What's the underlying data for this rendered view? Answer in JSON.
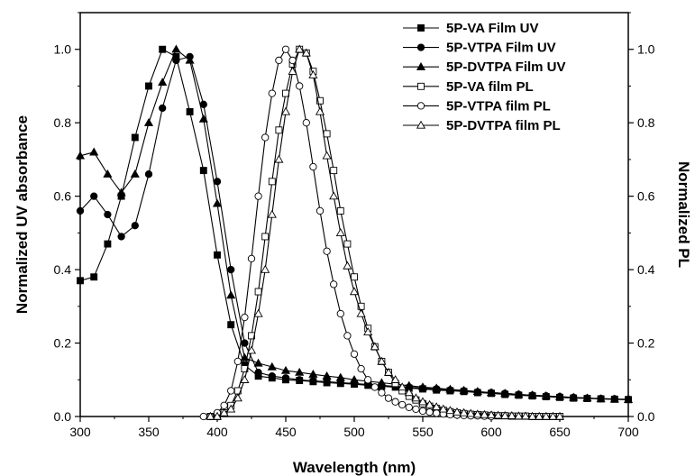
{
  "chart_data": {
    "type": "line",
    "xlabel": "Wavelength (nm)",
    "ylabel_left": "Normalized UV absorbance",
    "ylabel_right": "Normalized PL",
    "xlim": [
      300,
      700
    ],
    "ylim_left": [
      0,
      1.1
    ],
    "ylim_right": [
      0,
      1.1
    ],
    "x_ticks": [
      "300",
      "350",
      "400",
      "450",
      "500",
      "550",
      "600",
      "650",
      "700"
    ],
    "y_ticks_left": [
      "0.0",
      "0.2",
      "0.4",
      "0.6",
      "0.8",
      "1.0"
    ],
    "y_ticks_right": [
      "0.0",
      "0.2",
      "0.4",
      "0.6",
      "0.8",
      "1.0"
    ],
    "legend_position": "top-right",
    "grid": false,
    "series": [
      {
        "name": "5P-VA Film UV",
        "marker": "square",
        "fill": "filled",
        "x": [
          300,
          310,
          320,
          330,
          340,
          350,
          360,
          370,
          380,
          390,
          400,
          410,
          420,
          430,
          440,
          450,
          460,
          470,
          480,
          490,
          500,
          510,
          520,
          530,
          540,
          550,
          560,
          570,
          580,
          590,
          600,
          610,
          620,
          630,
          640,
          650,
          660,
          670,
          680,
          690,
          700
        ],
        "y": [
          0.37,
          0.38,
          0.47,
          0.6,
          0.76,
          0.9,
          1.0,
          0.98,
          0.83,
          0.67,
          0.44,
          0.25,
          0.14,
          0.11,
          0.105,
          0.1,
          0.098,
          0.095,
          0.092,
          0.09,
          0.088,
          0.085,
          0.082,
          0.08,
          0.077,
          0.075,
          0.072,
          0.07,
          0.068,
          0.065,
          0.063,
          0.06,
          0.058,
          0.056,
          0.054,
          0.052,
          0.05,
          0.049,
          0.048,
          0.047,
          0.046
        ]
      },
      {
        "name": "5P-VTPA Film UV",
        "marker": "circle",
        "fill": "filled",
        "x": [
          300,
          310,
          320,
          330,
          340,
          350,
          360,
          370,
          380,
          390,
          400,
          410,
          420,
          430,
          440,
          450,
          460,
          470,
          480,
          490,
          500,
          510,
          520,
          530,
          540,
          550,
          560,
          570,
          580,
          590,
          600,
          610,
          620,
          630,
          640,
          650,
          660,
          670,
          680,
          690,
          700
        ],
        "y": [
          0.56,
          0.6,
          0.55,
          0.49,
          0.52,
          0.66,
          0.84,
          0.97,
          0.98,
          0.85,
          0.64,
          0.4,
          0.2,
          0.12,
          0.11,
          0.105,
          0.1,
          0.097,
          0.095,
          0.092,
          0.09,
          0.087,
          0.085,
          0.082,
          0.08,
          0.077,
          0.075,
          0.072,
          0.07,
          0.067,
          0.065,
          0.063,
          0.06,
          0.058,
          0.056,
          0.054,
          0.052,
          0.05,
          0.049,
          0.048,
          0.047
        ]
      },
      {
        "name": "5P-DVTPA Film UV",
        "marker": "triangle",
        "fill": "filled",
        "x": [
          300,
          310,
          320,
          330,
          340,
          350,
          360,
          370,
          380,
          390,
          400,
          410,
          420,
          430,
          440,
          450,
          460,
          470,
          480,
          490,
          500,
          510,
          520,
          530,
          540,
          550,
          560,
          570,
          580,
          590,
          600,
          610,
          620,
          630,
          640,
          650,
          660,
          670,
          680,
          690,
          700
        ],
        "y": [
          0.71,
          0.72,
          0.66,
          0.61,
          0.66,
          0.8,
          0.91,
          1.0,
          0.97,
          0.81,
          0.58,
          0.33,
          0.16,
          0.145,
          0.135,
          0.125,
          0.12,
          0.115,
          0.11,
          0.106,
          0.1,
          0.096,
          0.092,
          0.088,
          0.084,
          0.08,
          0.077,
          0.074,
          0.071,
          0.068,
          0.065,
          0.063,
          0.06,
          0.058,
          0.056,
          0.054,
          0.052,
          0.05,
          0.048,
          0.047,
          0.046
        ]
      },
      {
        "name": "5P-VA film PL",
        "marker": "square",
        "fill": "open",
        "x": [
          395,
          400,
          405,
          410,
          415,
          420,
          425,
          430,
          435,
          440,
          445,
          450,
          455,
          460,
          465,
          470,
          475,
          480,
          485,
          490,
          495,
          500,
          505,
          510,
          515,
          520,
          525,
          530,
          535,
          540,
          545,
          550,
          555,
          560,
          565,
          570,
          575,
          580,
          585,
          590,
          595,
          600,
          605,
          610,
          615,
          620,
          625,
          630,
          635,
          640,
          645,
          650
        ],
        "y": [
          0.0,
          0.0,
          0.01,
          0.03,
          0.07,
          0.13,
          0.22,
          0.34,
          0.49,
          0.64,
          0.78,
          0.88,
          0.96,
          1.0,
          0.99,
          0.94,
          0.86,
          0.77,
          0.67,
          0.56,
          0.47,
          0.38,
          0.3,
          0.24,
          0.19,
          0.15,
          0.12,
          0.09,
          0.07,
          0.055,
          0.045,
          0.035,
          0.028,
          0.022,
          0.017,
          0.013,
          0.01,
          0.008,
          0.006,
          0.005,
          0.004,
          0.003,
          0.002,
          0.002,
          0.001,
          0.001,
          0.001,
          0.0,
          0.0,
          0.0,
          0.0,
          0.0
        ]
      },
      {
        "name": "5P-VTPA film PL",
        "marker": "circle",
        "fill": "open",
        "x": [
          390,
          395,
          400,
          405,
          410,
          415,
          420,
          425,
          430,
          435,
          440,
          445,
          450,
          455,
          460,
          465,
          470,
          475,
          480,
          485,
          490,
          495,
          500,
          505,
          510,
          515,
          520,
          525,
          530,
          535,
          540,
          545,
          550,
          555,
          560,
          565,
          570,
          575,
          580,
          585,
          590,
          595,
          600
        ],
        "y": [
          0.0,
          0.0,
          0.01,
          0.03,
          0.07,
          0.15,
          0.27,
          0.43,
          0.6,
          0.76,
          0.88,
          0.97,
          1.0,
          0.97,
          0.9,
          0.8,
          0.68,
          0.56,
          0.45,
          0.36,
          0.28,
          0.22,
          0.17,
          0.13,
          0.1,
          0.08,
          0.065,
          0.05,
          0.04,
          0.032,
          0.025,
          0.02,
          0.015,
          0.012,
          0.009,
          0.007,
          0.005,
          0.004,
          0.003,
          0.002,
          0.002,
          0.001,
          0.0
        ]
      },
      {
        "name": "5P-DVTPA film PL",
        "marker": "triangle",
        "fill": "open",
        "x": [
          395,
          400,
          405,
          410,
          415,
          420,
          425,
          430,
          435,
          440,
          445,
          450,
          455,
          460,
          465,
          470,
          475,
          480,
          485,
          490,
          495,
          500,
          505,
          510,
          515,
          520,
          525,
          530,
          535,
          540,
          545,
          550,
          555,
          560,
          565,
          570,
          575,
          580,
          585,
          590,
          595,
          600,
          605,
          610,
          615,
          620,
          625,
          630,
          635,
          640,
          645,
          650
        ],
        "y": [
          0.0,
          0.0,
          0.01,
          0.02,
          0.05,
          0.1,
          0.18,
          0.28,
          0.4,
          0.55,
          0.7,
          0.83,
          0.94,
          1.0,
          0.99,
          0.93,
          0.83,
          0.71,
          0.6,
          0.5,
          0.41,
          0.34,
          0.28,
          0.23,
          0.19,
          0.15,
          0.12,
          0.1,
          0.08,
          0.065,
          0.05,
          0.04,
          0.032,
          0.026,
          0.02,
          0.016,
          0.012,
          0.01,
          0.008,
          0.006,
          0.005,
          0.004,
          0.003,
          0.002,
          0.002,
          0.001,
          0.001,
          0.0,
          0.0,
          0.0,
          0.0,
          0.0
        ]
      }
    ]
  }
}
